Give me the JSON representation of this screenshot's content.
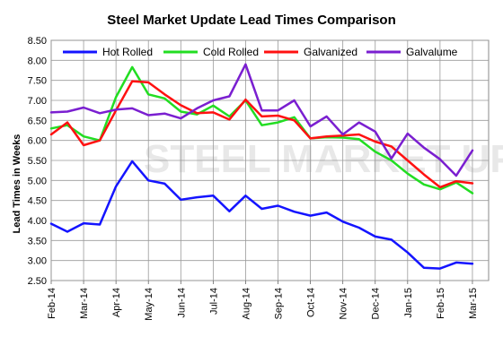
{
  "chart_data": {
    "type": "line",
    "title": "Steel Market Update Lead Times Comparison",
    "ylabel": "Lead Times in Weeks",
    "xlabel": "",
    "ylim": [
      2.5,
      8.5
    ],
    "yticks": [
      "2.50",
      "3.00",
      "3.50",
      "4.00",
      "4.50",
      "5.00",
      "5.50",
      "6.00",
      "6.50",
      "7.00",
      "7.50",
      "8.00",
      "8.50"
    ],
    "x_tick_labels": [
      "Feb-14",
      "Mar-14",
      "Apr-14",
      "May-14",
      "Jun-14",
      "Jul-14",
      "Aug-14",
      "Sep-14",
      "Oct-14",
      "Nov-14",
      "Dec-14",
      "Jan-15",
      "Feb-15",
      "Mar-15"
    ],
    "x_range": [
      0,
      27
    ],
    "grid": true,
    "legend_position": "top",
    "watermark": "STEEL MARKET UPDATE",
    "series": [
      {
        "name": "Hot Rolled",
        "color": "#1414ff",
        "values": [
          3.92,
          3.72,
          3.93,
          3.9,
          4.85,
          5.48,
          5.0,
          4.92,
          4.52,
          4.58,
          4.62,
          4.23,
          4.62,
          4.29,
          4.37,
          4.22,
          4.12,
          4.2,
          3.97,
          3.82,
          3.6,
          3.52,
          3.2,
          2.82,
          2.8,
          2.95,
          2.92
        ]
      },
      {
        "name": "Cold Rolled",
        "color": "#22dd22",
        "values": [
          6.3,
          6.38,
          6.1,
          6.0,
          7.08,
          7.83,
          7.15,
          7.05,
          6.72,
          6.65,
          6.87,
          6.6,
          7.0,
          6.38,
          6.45,
          6.58,
          6.05,
          6.08,
          6.07,
          6.03,
          5.72,
          5.5,
          5.17,
          4.9,
          4.78,
          4.95,
          4.68
        ]
      },
      {
        "name": "Galvanized",
        "color": "#ff1111",
        "values": [
          6.15,
          6.45,
          5.88,
          6.0,
          6.75,
          7.48,
          7.45,
          7.15,
          6.88,
          6.68,
          6.7,
          6.52,
          7.02,
          6.6,
          6.62,
          6.5,
          6.05,
          6.1,
          6.12,
          6.15,
          5.97,
          5.85,
          5.5,
          5.15,
          4.83,
          4.98,
          4.93
        ]
      },
      {
        "name": "Galvalume",
        "color": "#7a1fd0",
        "values": [
          6.7,
          6.72,
          6.82,
          6.68,
          6.77,
          6.8,
          6.63,
          6.67,
          6.55,
          6.8,
          7.0,
          7.1,
          7.9,
          6.75,
          6.75,
          7.0,
          6.35,
          6.6,
          6.15,
          6.45,
          6.22,
          5.55,
          6.17,
          5.82,
          5.53,
          5.12,
          5.75
        ]
      }
    ]
  }
}
